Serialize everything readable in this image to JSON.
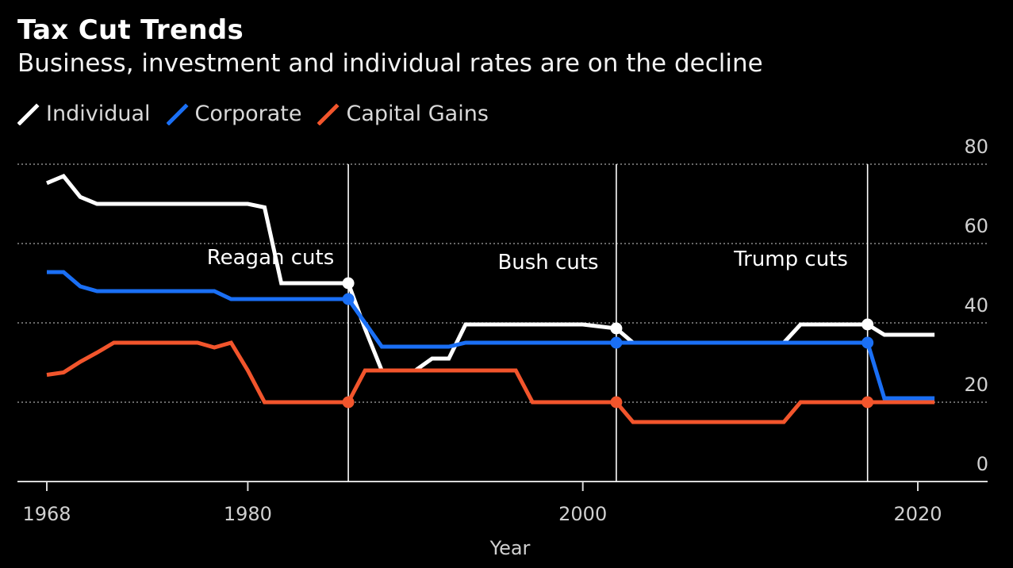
{
  "chart_data": {
    "type": "line",
    "title": "Tax Cut Trends",
    "subtitle": "Business, investment and individual rates are on the decline",
    "xlabel": "Year",
    "ylabel": "",
    "xlim": [
      1968,
      2022
    ],
    "ylim": [
      0,
      80
    ],
    "x_ticks": [
      "1968",
      "1980",
      "2000",
      "2020"
    ],
    "y_ticks": [
      "0",
      "20",
      "40",
      "60",
      "80"
    ],
    "grid": "horizontal dotted",
    "series": [
      {
        "name": "Individual",
        "color": "#ffffff",
        "points": [
          [
            1968,
            75.25
          ],
          [
            1969,
            77
          ],
          [
            1970,
            71.75
          ],
          [
            1971,
            70
          ],
          [
            1972,
            70
          ],
          [
            1973,
            70
          ],
          [
            1974,
            70
          ],
          [
            1975,
            70
          ],
          [
            1976,
            70
          ],
          [
            1977,
            70
          ],
          [
            1978,
            70
          ],
          [
            1979,
            70
          ],
          [
            1980,
            70
          ],
          [
            1981,
            69.13
          ],
          [
            1982,
            50
          ],
          [
            1983,
            50
          ],
          [
            1984,
            50
          ],
          [
            1985,
            50
          ],
          [
            1986,
            50
          ],
          [
            1987,
            38.5
          ],
          [
            1988,
            28
          ],
          [
            1989,
            28
          ],
          [
            1990,
            28
          ],
          [
            1991,
            31
          ],
          [
            1992,
            31
          ],
          [
            1993,
            39.6
          ],
          [
            1994,
            39.6
          ],
          [
            1995,
            39.6
          ],
          [
            1996,
            39.6
          ],
          [
            1997,
            39.6
          ],
          [
            1998,
            39.6
          ],
          [
            1999,
            39.6
          ],
          [
            2000,
            39.6
          ],
          [
            2001,
            39.1
          ],
          [
            2002,
            38.6
          ],
          [
            2003,
            35
          ],
          [
            2004,
            35
          ],
          [
            2005,
            35
          ],
          [
            2006,
            35
          ],
          [
            2007,
            35
          ],
          [
            2008,
            35
          ],
          [
            2009,
            35
          ],
          [
            2010,
            35
          ],
          [
            2011,
            35
          ],
          [
            2012,
            35
          ],
          [
            2013,
            39.6
          ],
          [
            2014,
            39.6
          ],
          [
            2015,
            39.6
          ],
          [
            2016,
            39.6
          ],
          [
            2017,
            39.6
          ],
          [
            2018,
            37
          ],
          [
            2019,
            37
          ],
          [
            2020,
            37
          ],
          [
            2021,
            37
          ]
        ]
      },
      {
        "name": "Corporate",
        "color": "#1a6ff5",
        "points": [
          [
            1968,
            52.8
          ],
          [
            1969,
            52.8
          ],
          [
            1970,
            49.2
          ],
          [
            1971,
            48
          ],
          [
            1972,
            48
          ],
          [
            1973,
            48
          ],
          [
            1974,
            48
          ],
          [
            1975,
            48
          ],
          [
            1976,
            48
          ],
          [
            1977,
            48
          ],
          [
            1978,
            48
          ],
          [
            1979,
            46
          ],
          [
            1980,
            46
          ],
          [
            1981,
            46
          ],
          [
            1982,
            46
          ],
          [
            1983,
            46
          ],
          [
            1984,
            46
          ],
          [
            1985,
            46
          ],
          [
            1986,
            46
          ],
          [
            1987,
            40
          ],
          [
            1988,
            34
          ],
          [
            1989,
            34
          ],
          [
            1990,
            34
          ],
          [
            1991,
            34
          ],
          [
            1992,
            34
          ],
          [
            1993,
            35
          ],
          [
            1994,
            35
          ],
          [
            1995,
            35
          ],
          [
            1996,
            35
          ],
          [
            1997,
            35
          ],
          [
            1998,
            35
          ],
          [
            1999,
            35
          ],
          [
            2000,
            35
          ],
          [
            2001,
            35
          ],
          [
            2002,
            35
          ],
          [
            2003,
            35
          ],
          [
            2004,
            35
          ],
          [
            2005,
            35
          ],
          [
            2006,
            35
          ],
          [
            2007,
            35
          ],
          [
            2008,
            35
          ],
          [
            2009,
            35
          ],
          [
            2010,
            35
          ],
          [
            2011,
            35
          ],
          [
            2012,
            35
          ],
          [
            2013,
            35
          ],
          [
            2014,
            35
          ],
          [
            2015,
            35
          ],
          [
            2016,
            35
          ],
          [
            2017,
            35
          ],
          [
            2018,
            21
          ],
          [
            2019,
            21
          ],
          [
            2020,
            21
          ],
          [
            2021,
            21
          ]
        ]
      },
      {
        "name": "Capital Gains",
        "color": "#f2552c",
        "points": [
          [
            1968,
            26.9
          ],
          [
            1969,
            27.5
          ],
          [
            1970,
            30.2
          ],
          [
            1971,
            32.5
          ],
          [
            1972,
            35
          ],
          [
            1973,
            35
          ],
          [
            1974,
            35
          ],
          [
            1975,
            35
          ],
          [
            1976,
            35
          ],
          [
            1977,
            35
          ],
          [
            1978,
            33.8
          ],
          [
            1979,
            35
          ],
          [
            1980,
            28
          ],
          [
            1981,
            20
          ],
          [
            1982,
            20
          ],
          [
            1983,
            20
          ],
          [
            1984,
            20
          ],
          [
            1985,
            20
          ],
          [
            1986,
            20
          ],
          [
            1987,
            28
          ],
          [
            1988,
            28
          ],
          [
            1989,
            28
          ],
          [
            1990,
            28
          ],
          [
            1991,
            28
          ],
          [
            1992,
            28
          ],
          [
            1993,
            28
          ],
          [
            1994,
            28
          ],
          [
            1995,
            28
          ],
          [
            1996,
            28
          ],
          [
            1997,
            20
          ],
          [
            1998,
            20
          ],
          [
            1999,
            20
          ],
          [
            2000,
            20
          ],
          [
            2001,
            20
          ],
          [
            2002,
            20
          ],
          [
            2003,
            15
          ],
          [
            2004,
            15
          ],
          [
            2005,
            15
          ],
          [
            2006,
            15
          ],
          [
            2007,
            15
          ],
          [
            2008,
            15
          ],
          [
            2009,
            15
          ],
          [
            2010,
            15
          ],
          [
            2011,
            15
          ],
          [
            2012,
            15
          ],
          [
            2013,
            20
          ],
          [
            2014,
            20
          ],
          [
            2015,
            20
          ],
          [
            2016,
            20
          ],
          [
            2017,
            20
          ],
          [
            2018,
            20
          ],
          [
            2019,
            20
          ],
          [
            2020,
            20
          ],
          [
            2021,
            20
          ]
        ]
      }
    ],
    "annotations": [
      {
        "label": "Reagan cuts",
        "year": 1986
      },
      {
        "label": "Bush cuts",
        "year": 2002
      },
      {
        "label": "Trump cuts",
        "year": 2017
      }
    ],
    "markers": [
      {
        "year": 1986,
        "series": "Individual",
        "value": 50
      },
      {
        "year": 1986,
        "series": "Corporate",
        "value": 46
      },
      {
        "year": 1986,
        "series": "Capital Gains",
        "value": 20
      },
      {
        "year": 2002,
        "series": "Individual",
        "value": 38.6
      },
      {
        "year": 2002,
        "series": "Corporate",
        "value": 35
      },
      {
        "year": 2002,
        "series": "Capital Gains",
        "value": 20
      },
      {
        "year": 2017,
        "series": "Individual",
        "value": 39.6
      },
      {
        "year": 2017,
        "series": "Corporate",
        "value": 35
      },
      {
        "year": 2017,
        "series": "Capital Gains",
        "value": 20
      }
    ]
  },
  "legend": [
    {
      "name": "Individual",
      "color": "#ffffff"
    },
    {
      "name": "Corporate",
      "color": "#1a6ff5"
    },
    {
      "name": "Capital Gains",
      "color": "#f2552c"
    }
  ]
}
